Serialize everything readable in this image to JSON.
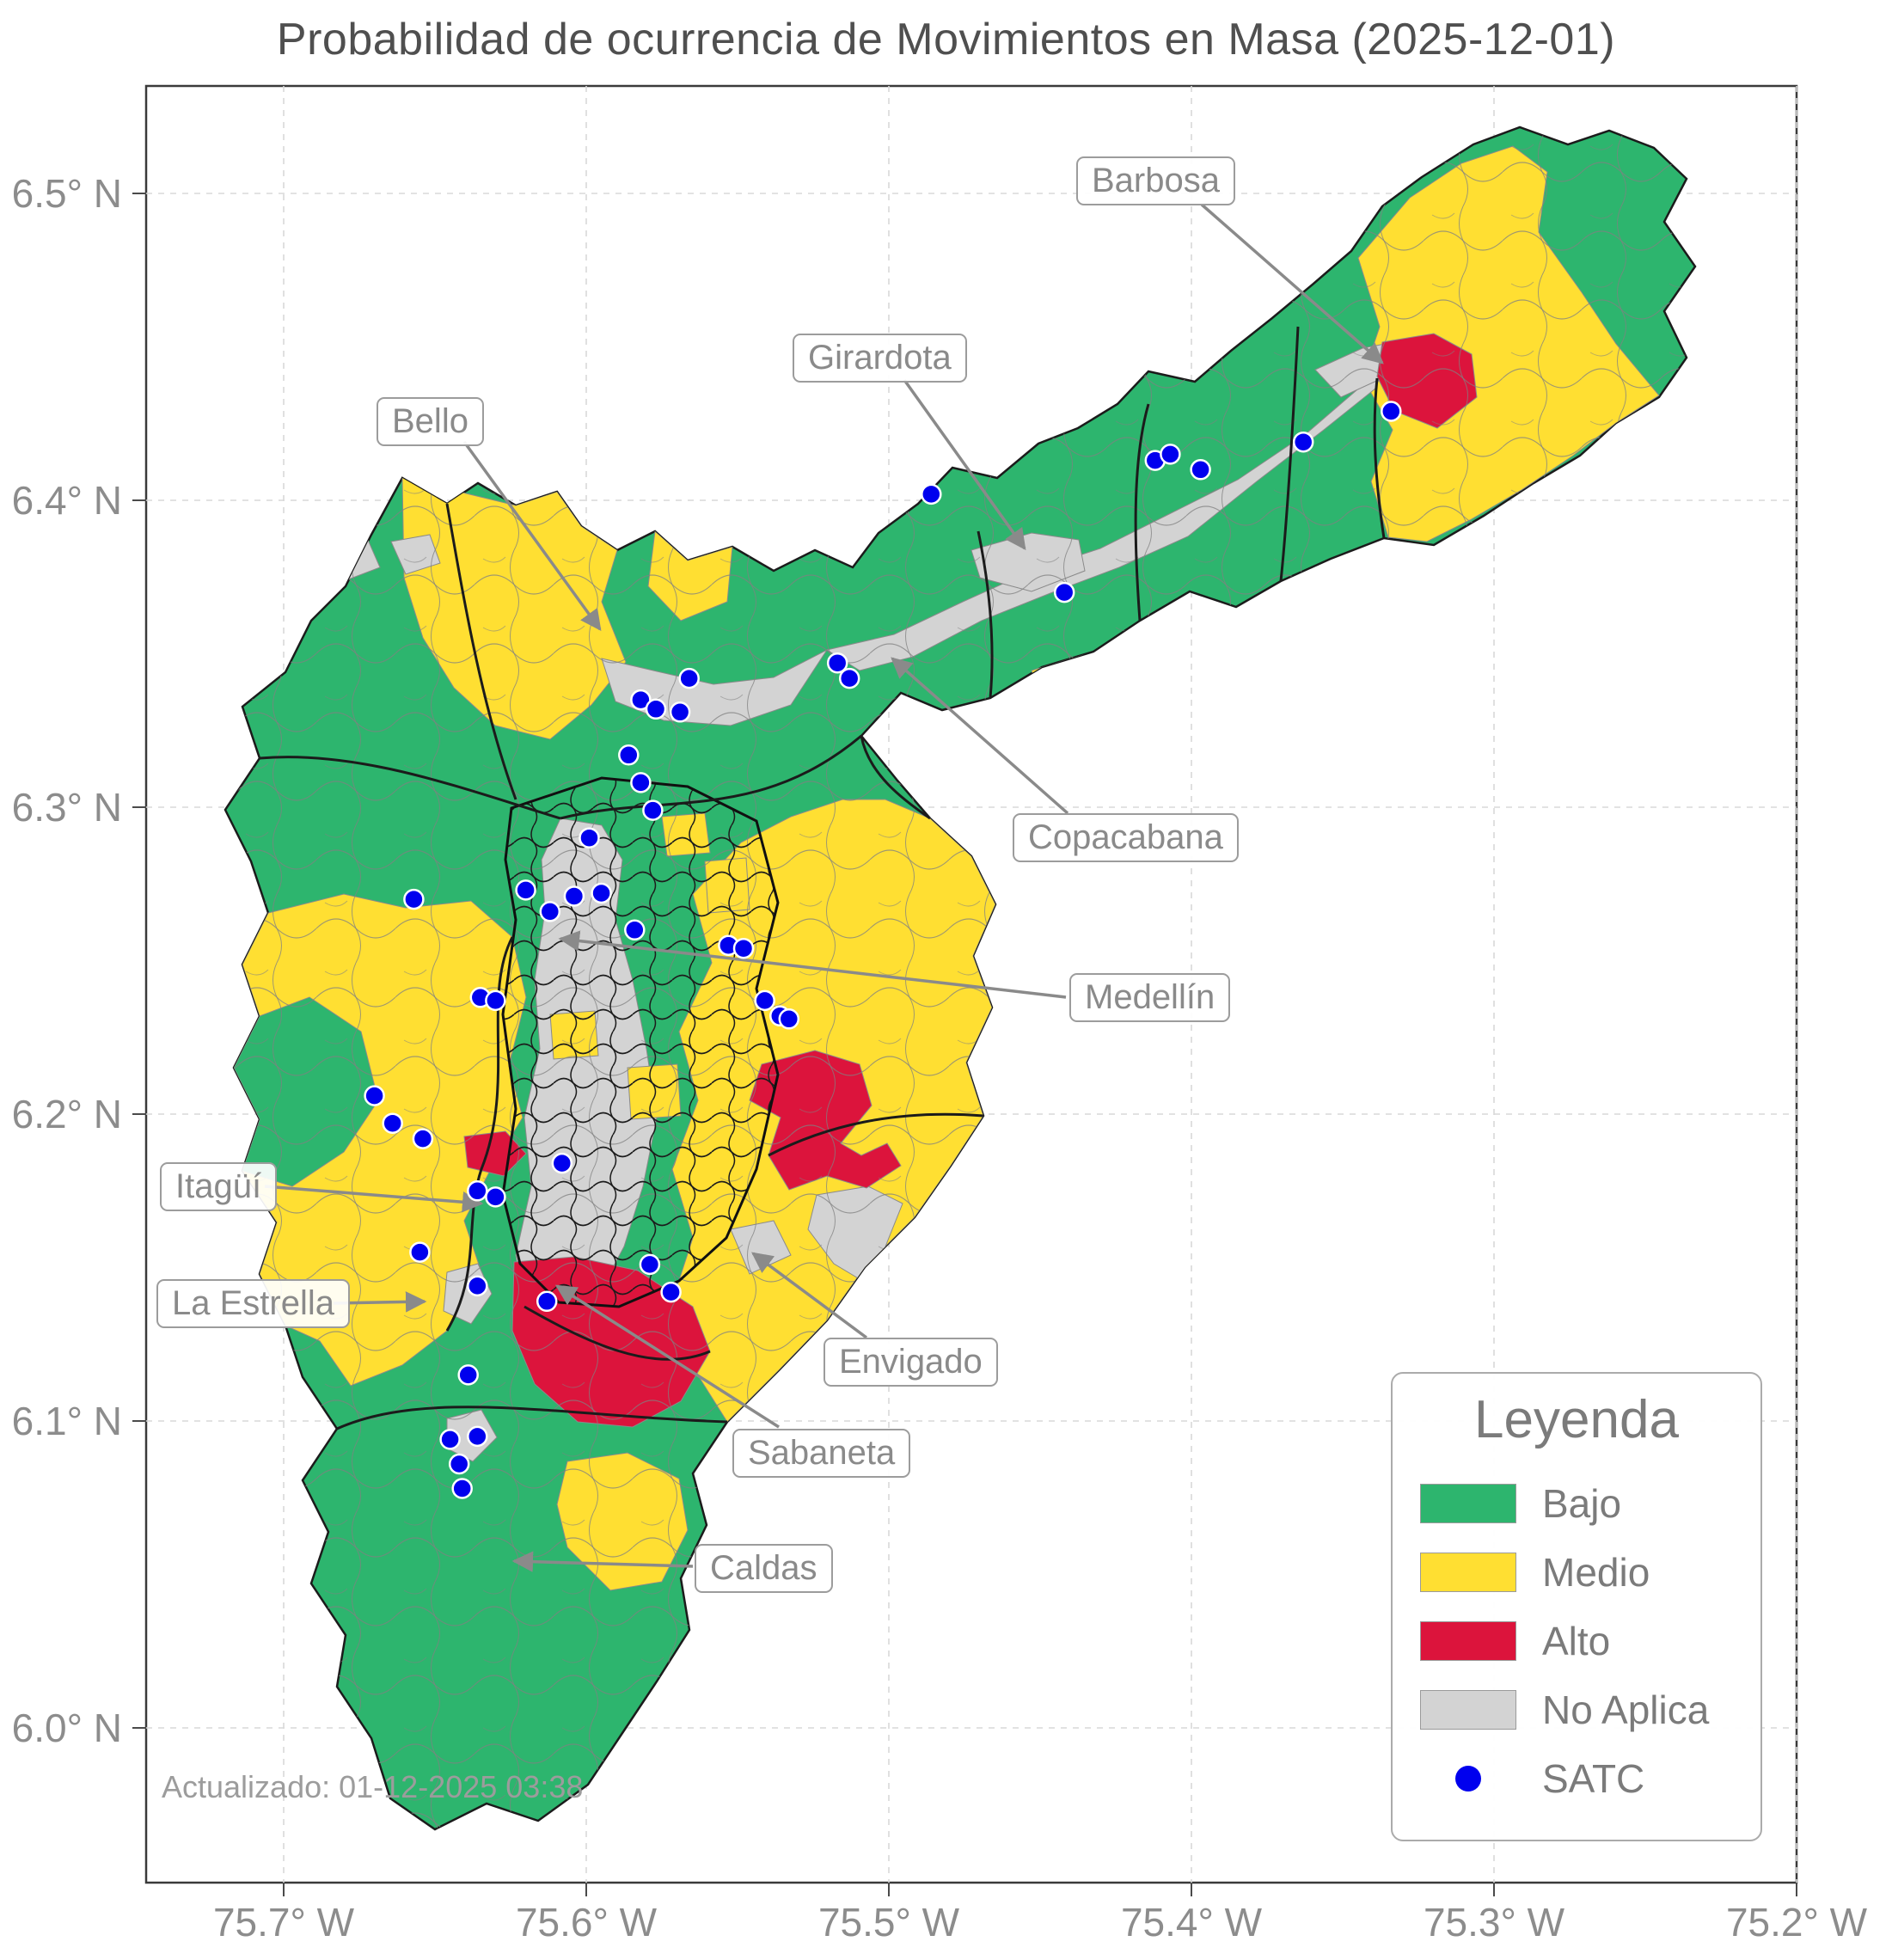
{
  "title": "Probabilidad de ocurrencia de Movimientos en Masa (2025-12-01)",
  "updated_text": "Actualizado: 01-12-2025 03:38",
  "axes": {
    "x_ticks": [
      "75.7° W",
      "75.6° W",
      "75.5° W",
      "75.4° W",
      "75.3° W",
      "75.2° W"
    ],
    "y_ticks": [
      "6.5° N",
      "6.4° N",
      "6.3° N",
      "6.2° N",
      "6.1° N",
      "6.0° N"
    ],
    "lon_left_w": 75.7,
    "lon_right_w": 75.2,
    "lat_top": 6.5,
    "lat_bottom": 6.0
  },
  "legend": {
    "title": "Leyenda",
    "items": [
      {
        "label": "Bajo",
        "kind": "swatch",
        "level": "low"
      },
      {
        "label": "Medio",
        "kind": "swatch",
        "level": "medium"
      },
      {
        "label": "Alto",
        "kind": "swatch",
        "level": "high"
      },
      {
        "label": "No Aplica",
        "kind": "swatch",
        "level": "na"
      },
      {
        "label": "SATC",
        "kind": "dot",
        "level": "satc"
      }
    ]
  },
  "annotations": [
    {
      "label": "Barbosa"
    },
    {
      "label": "Girardota"
    },
    {
      "label": "Bello"
    },
    {
      "label": "Copacabana"
    },
    {
      "label": "Medellín"
    },
    {
      "label": "Itagüí"
    },
    {
      "label": "La Estrella"
    },
    {
      "label": "Envigado"
    },
    {
      "label": "Sabaneta"
    },
    {
      "label": "Caldas"
    }
  ],
  "map": {
    "colors": {
      "low": "#2db56e",
      "medium": "#ffdf32",
      "high": "#dc143c",
      "na": "#d3d3d3",
      "satc": "#0000ee"
    },
    "satc_points": [
      {
        "lon_w": 75.486,
        "lat": 6.402
      },
      {
        "lon_w": 75.442,
        "lat": 6.37
      },
      {
        "lon_w": 75.412,
        "lat": 6.413
      },
      {
        "lon_w": 75.407,
        "lat": 6.415
      },
      {
        "lon_w": 75.397,
        "lat": 6.41
      },
      {
        "lon_w": 75.363,
        "lat": 6.419
      },
      {
        "lon_w": 75.334,
        "lat": 6.429
      },
      {
        "lon_w": 75.517,
        "lat": 6.347
      },
      {
        "lon_w": 75.513,
        "lat": 6.342
      },
      {
        "lon_w": 75.566,
        "lat": 6.342
      },
      {
        "lon_w": 75.582,
        "lat": 6.335
      },
      {
        "lon_w": 75.577,
        "lat": 6.332
      },
      {
        "lon_w": 75.569,
        "lat": 6.331
      },
      {
        "lon_w": 75.586,
        "lat": 6.317
      },
      {
        "lon_w": 75.582,
        "lat": 6.308
      },
      {
        "lon_w": 75.578,
        "lat": 6.299
      },
      {
        "lon_w": 75.599,
        "lat": 6.29
      },
      {
        "lon_w": 75.595,
        "lat": 6.272
      },
      {
        "lon_w": 75.604,
        "lat": 6.271
      },
      {
        "lon_w": 75.62,
        "lat": 6.273
      },
      {
        "lon_w": 75.612,
        "lat": 6.266
      },
      {
        "lon_w": 75.584,
        "lat": 6.26
      },
      {
        "lon_w": 75.553,
        "lat": 6.255
      },
      {
        "lon_w": 75.548,
        "lat": 6.254
      },
      {
        "lon_w": 75.541,
        "lat": 6.237
      },
      {
        "lon_w": 75.536,
        "lat": 6.232
      },
      {
        "lon_w": 75.533,
        "lat": 6.231
      },
      {
        "lon_w": 75.635,
        "lat": 6.238
      },
      {
        "lon_w": 75.63,
        "lat": 6.237
      },
      {
        "lon_w": 75.657,
        "lat": 6.27
      },
      {
        "lon_w": 75.67,
        "lat": 6.206
      },
      {
        "lon_w": 75.664,
        "lat": 6.197
      },
      {
        "lon_w": 75.654,
        "lat": 6.192
      },
      {
        "lon_w": 75.608,
        "lat": 6.184
      },
      {
        "lon_w": 75.636,
        "lat": 6.175
      },
      {
        "lon_w": 75.63,
        "lat": 6.173
      },
      {
        "lon_w": 75.655,
        "lat": 6.155
      },
      {
        "lon_w": 75.636,
        "lat": 6.144
      },
      {
        "lon_w": 75.579,
        "lat": 6.151
      },
      {
        "lon_w": 75.572,
        "lat": 6.142
      },
      {
        "lon_w": 75.613,
        "lat": 6.139
      },
      {
        "lon_w": 75.639,
        "lat": 6.115
      },
      {
        "lon_w": 75.645,
        "lat": 6.094
      },
      {
        "lon_w": 75.636,
        "lat": 6.095
      },
      {
        "lon_w": 75.642,
        "lat": 6.086
      },
      {
        "lon_w": 75.641,
        "lat": 6.078
      }
    ]
  }
}
